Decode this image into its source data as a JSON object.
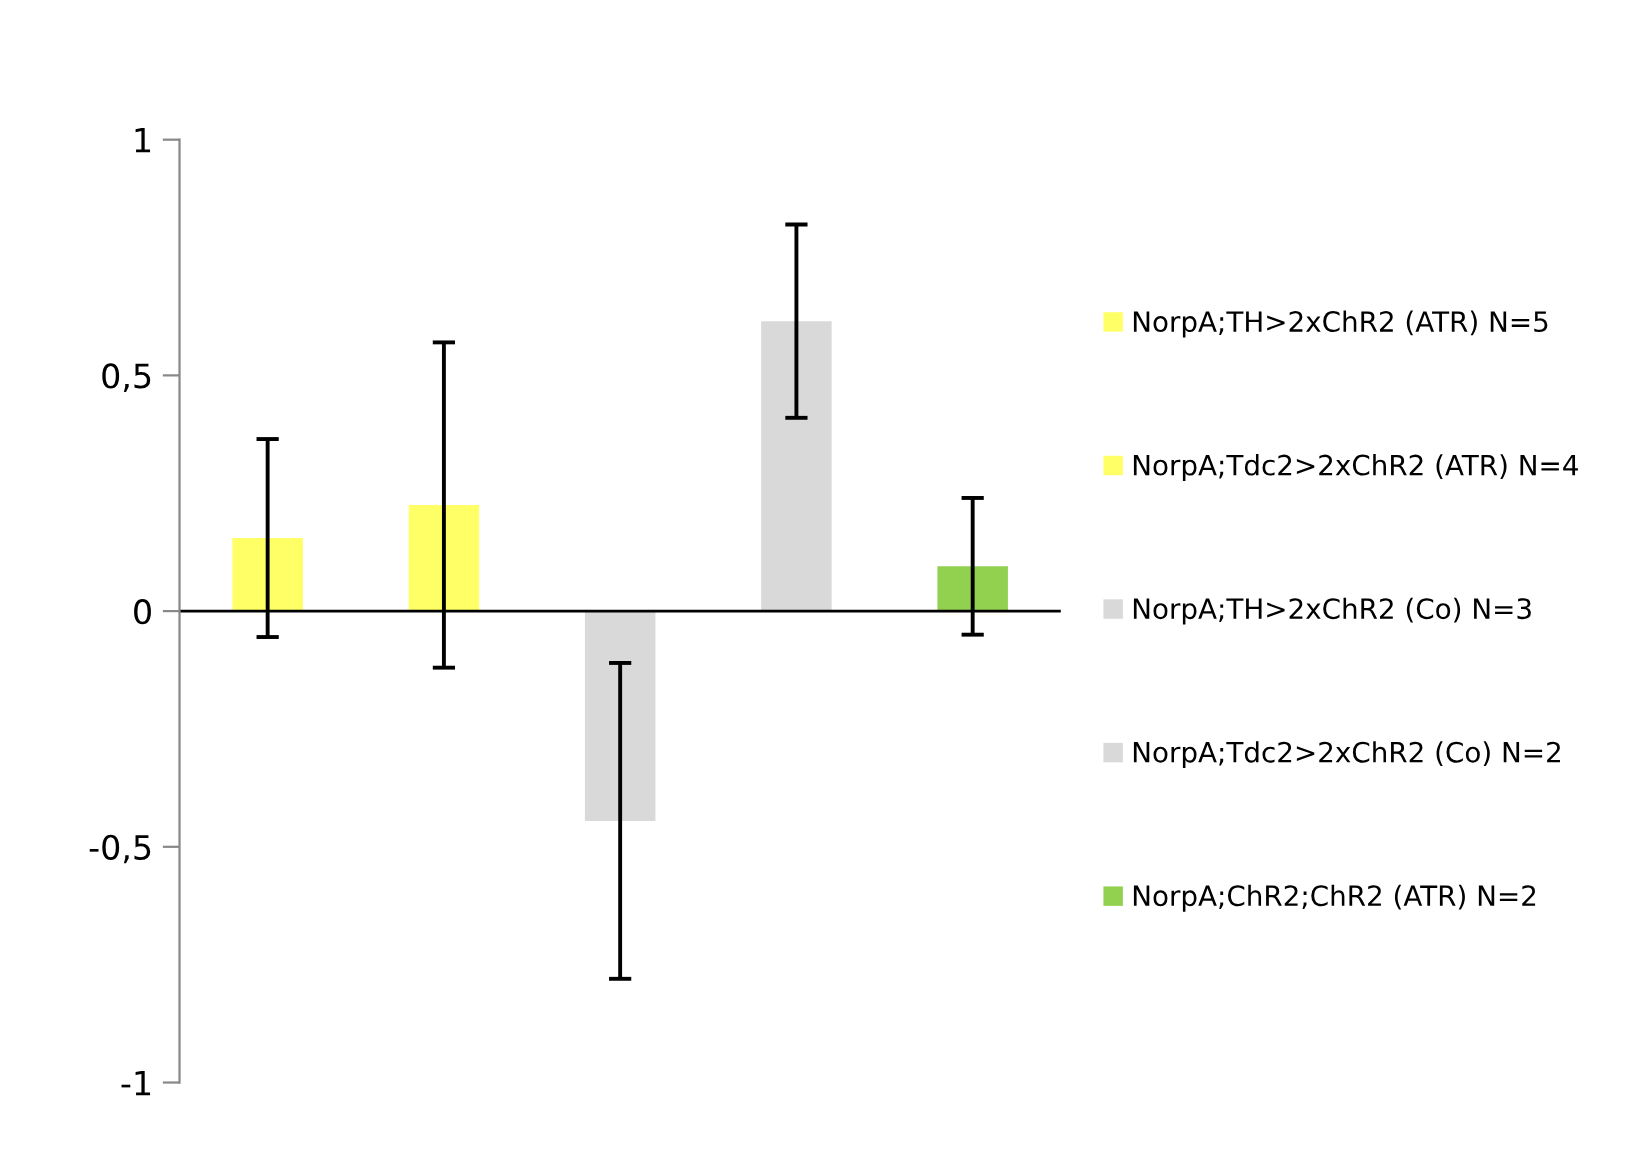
{
  "chart_data": {
    "type": "bar",
    "categories": [
      null,
      null,
      null,
      null,
      null
    ],
    "series": [
      {
        "name": "NorpA;TH>2xChR2 (ATR) N=5",
        "color": "#ffff66",
        "values": [
          0.155,
          null,
          null,
          null,
          null
        ],
        "errors": [
          0.21,
          null,
          null,
          null,
          null
        ]
      },
      {
        "name": "NorpA;Tdc2>2xChR2 (ATR) N=4",
        "color": "#ffff66",
        "values": [
          null,
          0.225,
          null,
          null,
          null
        ],
        "errors": [
          null,
          0.345,
          null,
          null,
          null
        ]
      },
      {
        "name": "NorpA;TH>2xChR2 (Co) N=3",
        "color": "#d9d9d9",
        "values": [
          null,
          null,
          -0.445,
          null,
          null
        ],
        "errors": [
          null,
          null,
          0.335,
          null,
          null
        ]
      },
      {
        "name": "NorpA;Tdc2>2xChR2 (Co) N=2",
        "color": "#d9d9d9",
        "values": [
          null,
          null,
          null,
          0.615,
          null
        ],
        "errors": [
          null,
          null,
          null,
          0.205,
          null
        ]
      },
      {
        "name": "NorpA;ChR2;ChR2 (ATR) N=2",
        "color": "#92d050",
        "values": [
          null,
          null,
          null,
          null,
          0.095
        ],
        "errors": [
          null,
          null,
          null,
          null,
          0.145
        ]
      }
    ],
    "ylim": [
      -1,
      1
    ],
    "yticks": [
      {
        "value": -1,
        "label": "-1"
      },
      {
        "value": -0.5,
        "label": "-0,5"
      },
      {
        "value": 0,
        "label": "0"
      },
      {
        "value": 0.5,
        "label": "0,5"
      },
      {
        "value": 1,
        "label": "1"
      }
    ],
    "tick_labels": "y",
    "ref_lines": [
      {
        "axis": "y",
        "value": 0,
        "color": "#000000"
      }
    ],
    "legend": "right"
  }
}
